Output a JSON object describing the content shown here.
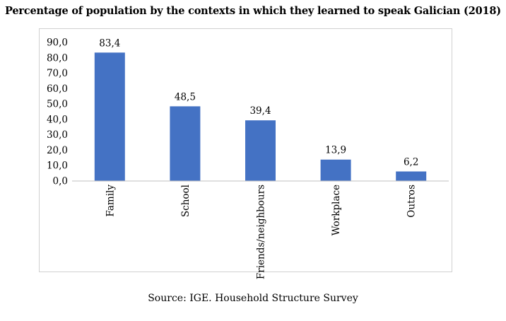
{
  "chart_data": {
    "type": "bar",
    "title": "Percentage of population by the contexts in which they learned to speak Galician (2018)",
    "categories": [
      "Family",
      "School",
      "Friends/neighbours",
      "Workplace",
      "Outros"
    ],
    "values": [
      83.4,
      48.5,
      39.4,
      13.9,
      6.2
    ],
    "value_labels": [
      "83,4",
      "48,5",
      "39,4",
      "13,9",
      "6,2"
    ],
    "y_ticks": [
      "0,0",
      "10,0",
      "20,0",
      "30,0",
      "40,0",
      "50,0",
      "60,0",
      "70,0",
      "80,0",
      "90,0"
    ],
    "ylim": [
      0,
      90
    ],
    "xlabel": "",
    "ylabel": "",
    "bar_color": "#4472c4",
    "grid": false,
    "legend": "none"
  },
  "source": "Source: IGE. Household Structure Survey"
}
